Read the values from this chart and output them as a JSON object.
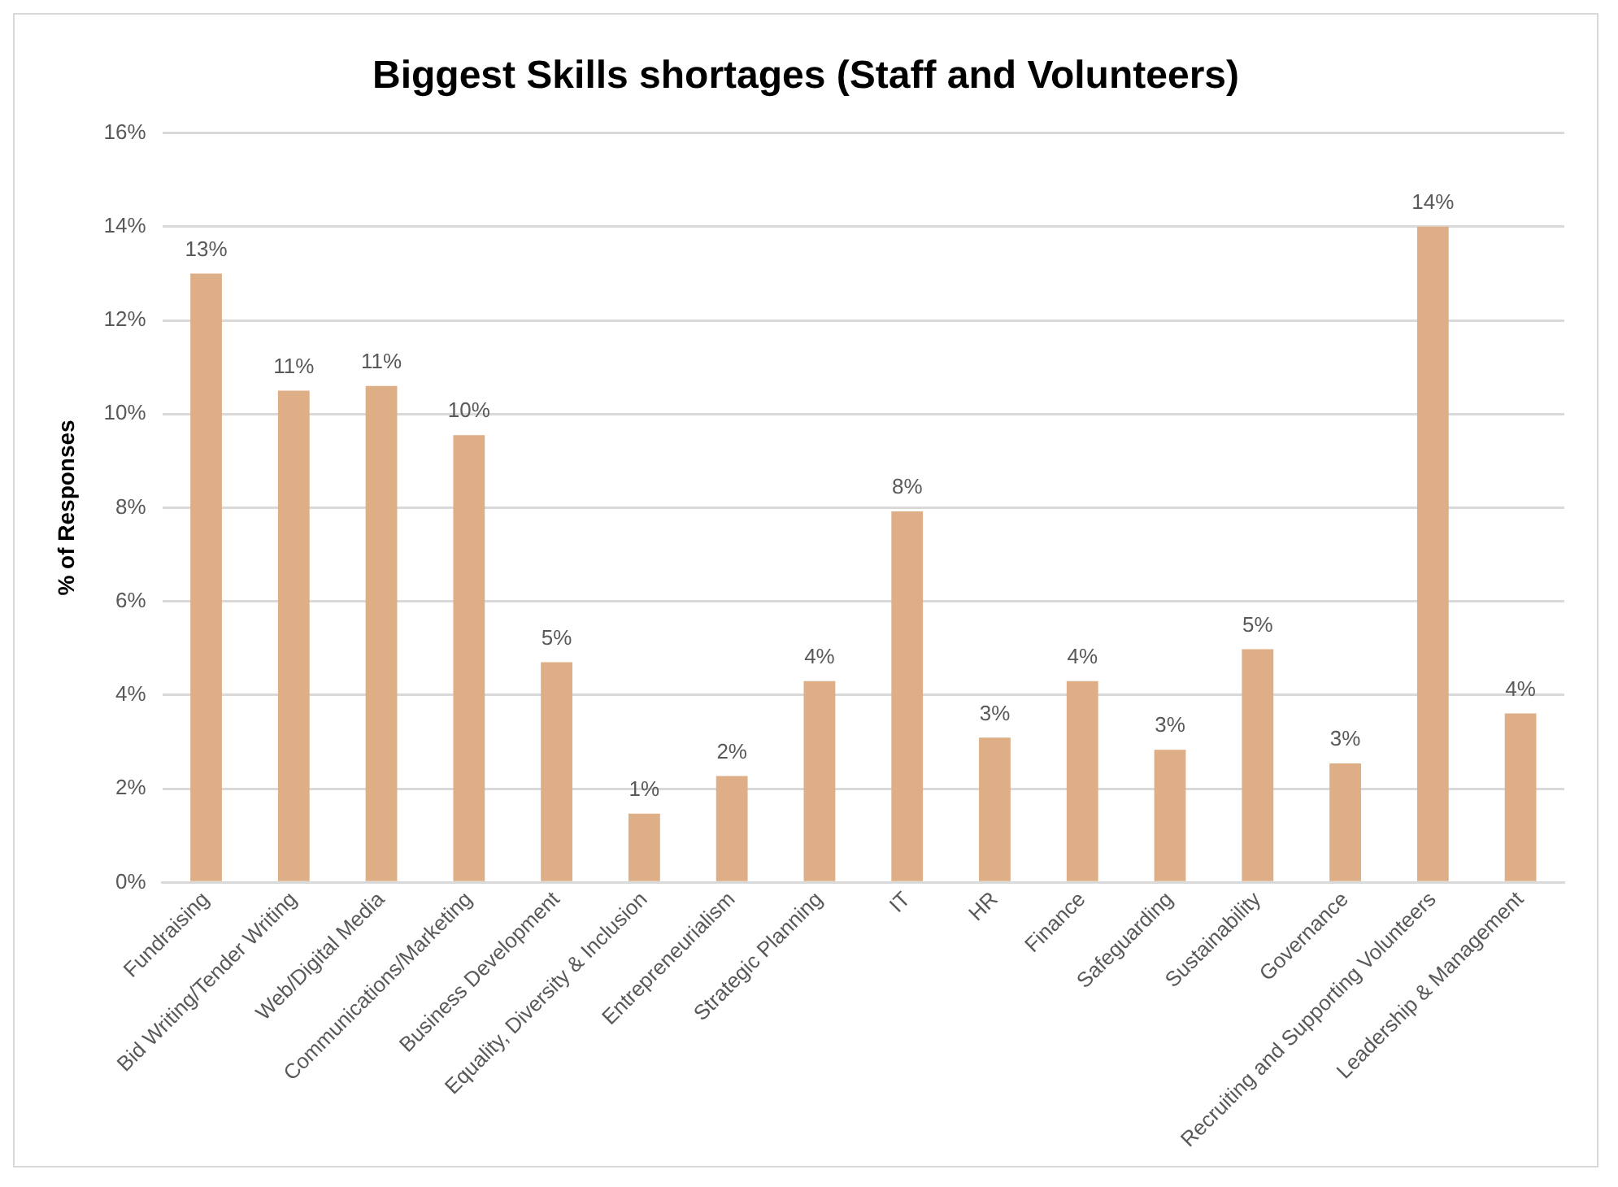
{
  "chart_data": {
    "type": "bar",
    "title": "Biggest Skills shortages (Staff and Volunteers)",
    "ylabel": "% of Responses",
    "categories": [
      "Fundraising",
      "Bid Writing/Tender Writing",
      "Web/Digital Media",
      "Communications/Marketing",
      "Business Development",
      "Equality, Diversity & Inclusion",
      "Entrepreneurialism",
      "Strategic Planning",
      "IT",
      "HR",
      "Finance",
      "Safeguarding",
      "Sustainability",
      "Governance",
      "Recruiting and Supporting Volunteers",
      "Leadership & Management"
    ],
    "values": [
      13.0,
      10.5,
      10.6,
      9.55,
      4.7,
      1.47,
      2.27,
      4.3,
      7.92,
      3.09,
      4.3,
      2.83,
      4.98,
      2.54,
      14.0,
      3.61
    ],
    "value_labels": [
      "13%",
      "11%",
      "11%",
      "10%",
      "5%",
      "1%",
      "2%",
      "4%",
      "8%",
      "3%",
      "4%",
      "3%",
      "5%",
      "3%",
      "14%",
      "4%"
    ],
    "color": "#deae87",
    "ylim": [
      0,
      16
    ],
    "yticks": [
      {
        "value": 0,
        "label": "0%"
      },
      {
        "value": 2,
        "label": "2%"
      },
      {
        "value": 4,
        "label": "4%"
      },
      {
        "value": 6,
        "label": "6%"
      },
      {
        "value": 8,
        "label": "8%"
      },
      {
        "value": 10,
        "label": "10%"
      },
      {
        "value": 12,
        "label": "12%"
      },
      {
        "value": 14,
        "label": "14%"
      },
      {
        "value": 16,
        "label": "16%"
      }
    ],
    "grid": "y",
    "legend": false
  }
}
